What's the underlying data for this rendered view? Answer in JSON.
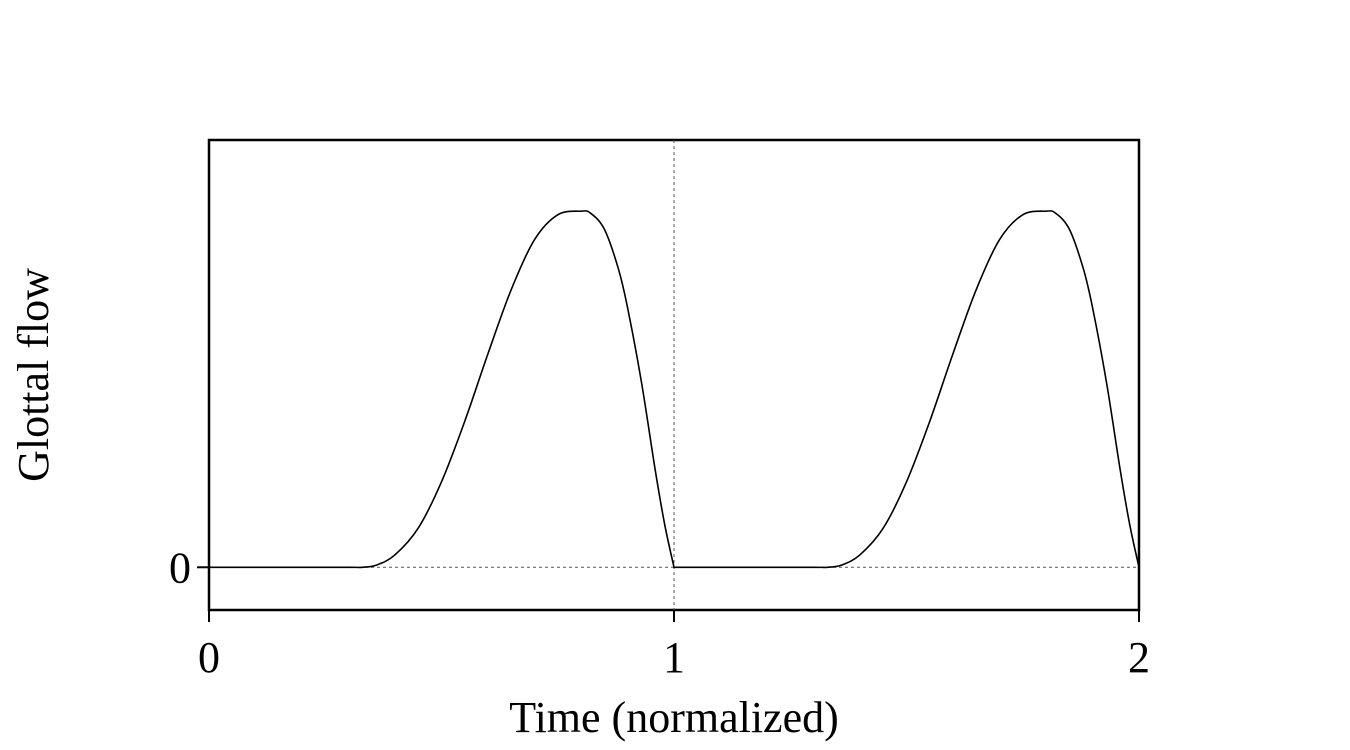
{
  "chart_data": {
    "type": "line",
    "title": "",
    "xlabel": "Time (normalized)",
    "ylabel": "Glottal flow",
    "xlim": [
      0,
      2
    ],
    "ylim": [
      -0.12,
      1.2
    ],
    "x_ticks": [
      {
        "value": 0,
        "label": "0"
      },
      {
        "value": 1,
        "label": "1"
      },
      {
        "value": 2,
        "label": "2"
      }
    ],
    "y_ticks": [
      {
        "value": 0,
        "label": "0"
      }
    ],
    "reference_lines": [
      {
        "axis": "y",
        "value": 0,
        "style": "dotted"
      },
      {
        "axis": "x",
        "value": 1,
        "style": "dotted"
      }
    ],
    "grid": false,
    "legend": "none",
    "line_color": "#000000",
    "series": [
      {
        "x": [
          0,
          0.1,
          0.2,
          0.3,
          0.33,
          0.36,
          0.4,
          0.45,
          0.5,
          0.55,
          0.6,
          0.65,
          0.7,
          0.75,
          0.8,
          0.82,
          0.85,
          0.88,
          0.9,
          0.93,
          0.96,
          0.98,
          1.0,
          1.0,
          1.1,
          1.2,
          1.3,
          1.33,
          1.36,
          1.4,
          1.45,
          1.5,
          1.55,
          1.6,
          1.65,
          1.7,
          1.75,
          1.8,
          1.82,
          1.85,
          1.88,
          1.9,
          1.93,
          1.96,
          1.98,
          2.0
        ],
        "y": [
          0,
          0,
          0,
          0,
          0,
          0.006,
          0.035,
          0.11,
          0.24,
          0.41,
          0.6,
          0.78,
          0.92,
          0.99,
          1.0,
          0.995,
          0.95,
          0.84,
          0.73,
          0.52,
          0.27,
          0.12,
          0,
          0,
          0,
          0,
          0,
          0,
          0.006,
          0.035,
          0.11,
          0.24,
          0.41,
          0.6,
          0.78,
          0.92,
          0.99,
          1.0,
          0.995,
          0.95,
          0.84,
          0.73,
          0.52,
          0.27,
          0.12,
          0
        ]
      }
    ]
  }
}
